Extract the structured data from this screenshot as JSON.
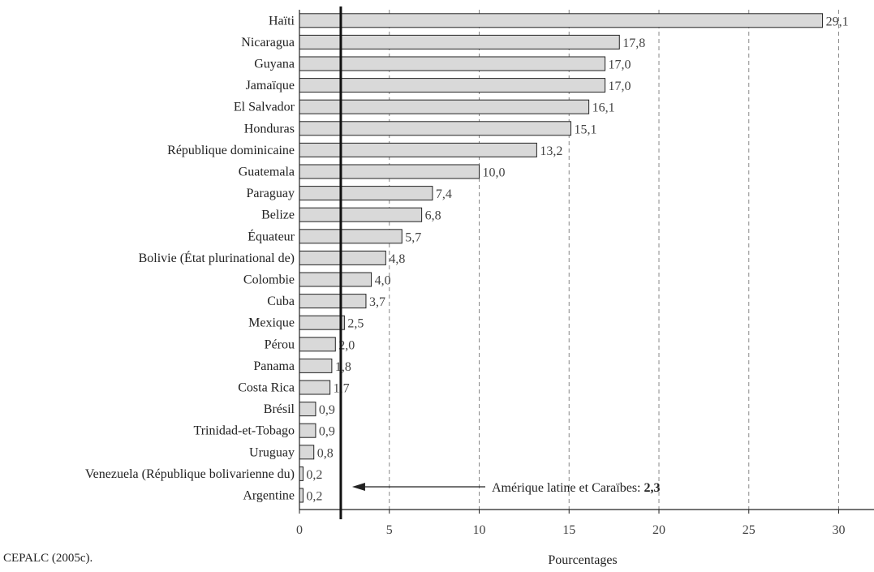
{
  "chart_data": {
    "type": "bar",
    "orientation": "horizontal",
    "categories": [
      "Haïti",
      "Nicaragua",
      "Guyana",
      "Jamaïque",
      "El Salvador",
      "Honduras",
      "République dominicaine",
      "Guatemala",
      "Paraguay",
      "Belize",
      "Équateur",
      "Bolivie (État plurinational de)",
      "Colombie",
      "Cuba",
      "Mexique",
      "Pérou",
      "Panama",
      "Costa Rica",
      "Brésil",
      "Trinidad-et-Tobago",
      "Uruguay",
      "Venezuela (République bolivarienne du)",
      "Argentine"
    ],
    "values": [
      29.1,
      17.8,
      17.0,
      17.0,
      16.1,
      15.1,
      13.2,
      10.0,
      7.4,
      6.8,
      5.7,
      4.8,
      4.0,
      3.7,
      2.5,
      2.0,
      1.8,
      1.7,
      0.9,
      0.9,
      0.8,
      0.2,
      0.2
    ],
    "value_labels": [
      "29,1",
      "17,8",
      "17,0",
      "17,0",
      "16,1",
      "15,1",
      "13,2",
      "10,0",
      "7,4",
      "6,8",
      "5,7",
      "4,8",
      "4,0",
      "3,7",
      "2,5",
      "2,0",
      "1,8",
      "1,7",
      "0,9",
      "0,9",
      "0,8",
      "0,2",
      "0,2"
    ],
    "xlabel": "Pourcentages",
    "xlim": [
      0,
      32
    ],
    "xticks": [
      0,
      5,
      10,
      15,
      20,
      25,
      30
    ],
    "xtick_labels": [
      "0",
      "5",
      "10",
      "15",
      "20",
      "25",
      "30"
    ],
    "grid": "vertical dashed",
    "bar_color": "#d9d9d9",
    "bar_edge_color": "#222222",
    "reference_line": {
      "value": 2.3,
      "label": "Amérique latine et Caraïbes:",
      "value_label": "2,3"
    },
    "source_note": "CEPALC (2005c)."
  }
}
